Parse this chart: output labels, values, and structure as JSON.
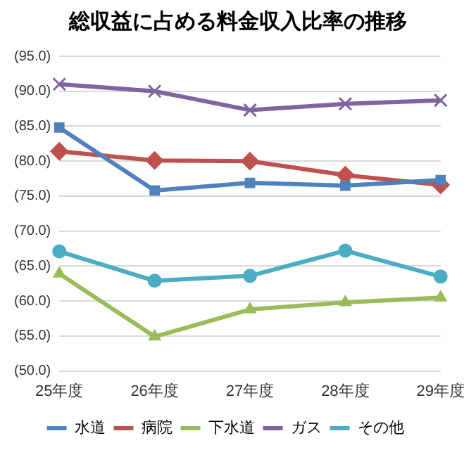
{
  "chart_data": {
    "type": "line",
    "title": "総収益に占める料金収入比率の推移",
    "categories": [
      "25年度",
      "26年度",
      "27年度",
      "28年度",
      "29年度"
    ],
    "series": [
      {
        "name": "水道",
        "color": "#4f81bd",
        "marker": "square",
        "values": [
          84.8,
          75.8,
          76.9,
          76.5,
          77.3
        ]
      },
      {
        "name": "病院",
        "color": "#c0504d",
        "marker": "diamond",
        "values": [
          81.4,
          80.1,
          80.0,
          78.0,
          76.6
        ]
      },
      {
        "name": "下水道",
        "color": "#9bbb59",
        "marker": "triangle",
        "values": [
          63.9,
          54.9,
          58.8,
          59.8,
          60.5
        ]
      },
      {
        "name": "ガス",
        "color": "#8064a2",
        "marker": "cross",
        "values": [
          91.0,
          90.0,
          87.3,
          88.2,
          88.7
        ]
      },
      {
        "name": "その他",
        "color": "#4bacc6",
        "marker": "circle",
        "values": [
          67.1,
          62.9,
          63.6,
          67.2,
          63.5
        ]
      }
    ],
    "ylim": [
      50,
      95
    ],
    "yticks": [
      {
        "value": 50,
        "label": "(50.0)"
      },
      {
        "value": 55,
        "label": "(55.0)"
      },
      {
        "value": 60,
        "label": "(60.0)"
      },
      {
        "value": 65,
        "label": "(65.0)"
      },
      {
        "value": 70,
        "label": "(70.0)"
      },
      {
        "value": 75,
        "label": "(75.0)"
      },
      {
        "value": 80,
        "label": "(80.0)"
      },
      {
        "value": 85,
        "label": "(85.0)"
      },
      {
        "value": 90,
        "label": "(90.0)"
      },
      {
        "value": 95,
        "label": "(95.0)"
      }
    ],
    "grid": "y",
    "legend": "bottom"
  }
}
